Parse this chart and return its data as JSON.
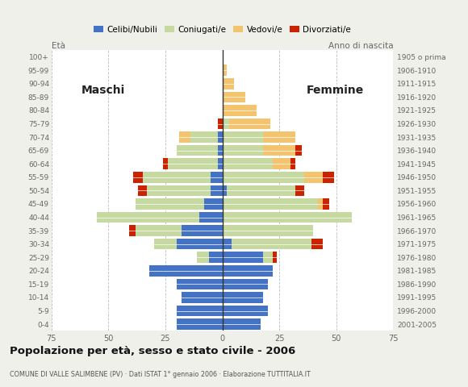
{
  "age_groups": [
    "0-4",
    "5-9",
    "10-14",
    "15-19",
    "20-24",
    "25-29",
    "30-34",
    "35-39",
    "40-44",
    "45-49",
    "50-54",
    "55-59",
    "60-64",
    "65-69",
    "70-74",
    "75-79",
    "80-84",
    "85-89",
    "90-94",
    "95-99",
    "100+"
  ],
  "birth_years": [
    "2001-2005",
    "1996-2000",
    "1991-1995",
    "1986-1990",
    "1981-1985",
    "1976-1980",
    "1971-1975",
    "1966-1970",
    "1961-1965",
    "1956-1960",
    "1951-1955",
    "1946-1950",
    "1941-1945",
    "1936-1940",
    "1931-1935",
    "1926-1930",
    "1921-1925",
    "1916-1920",
    "1911-1915",
    "1906-1910",
    "1905 o prima"
  ],
  "colors": {
    "celibe": "#4472c4",
    "coniugato": "#c6d9a0",
    "vedovo": "#f4c36e",
    "divorziato": "#cc2200"
  },
  "males": {
    "celibe": [
      20,
      20,
      18,
      20,
      32,
      6,
      20,
      18,
      10,
      8,
      5,
      5,
      2,
      2,
      2,
      0,
      0,
      0,
      0,
      0,
      0
    ],
    "coniugato": [
      0,
      0,
      0,
      0,
      0,
      5,
      10,
      20,
      45,
      30,
      28,
      30,
      22,
      18,
      12,
      0,
      0,
      0,
      0,
      0,
      0
    ],
    "vedovo": [
      0,
      0,
      0,
      0,
      0,
      0,
      0,
      0,
      0,
      0,
      0,
      0,
      0,
      0,
      5,
      0,
      0,
      0,
      0,
      0,
      0
    ],
    "divorziato": [
      0,
      0,
      0,
      0,
      0,
      0,
      0,
      3,
      0,
      0,
      4,
      4,
      2,
      0,
      0,
      2,
      0,
      0,
      0,
      0,
      0
    ]
  },
  "females": {
    "nubile": [
      17,
      20,
      18,
      20,
      22,
      18,
      4,
      0,
      0,
      0,
      2,
      0,
      0,
      0,
      0,
      0,
      0,
      0,
      0,
      0,
      0
    ],
    "coniugata": [
      0,
      0,
      0,
      0,
      0,
      4,
      35,
      40,
      57,
      42,
      30,
      36,
      22,
      18,
      18,
      3,
      0,
      0,
      0,
      0,
      0
    ],
    "vedova": [
      0,
      0,
      0,
      0,
      0,
      0,
      0,
      0,
      0,
      2,
      0,
      8,
      8,
      14,
      14,
      18,
      15,
      10,
      5,
      2,
      0
    ],
    "divorziata": [
      0,
      0,
      0,
      0,
      0,
      2,
      5,
      0,
      0,
      3,
      4,
      5,
      2,
      3,
      0,
      0,
      0,
      0,
      0,
      0,
      0
    ]
  },
  "xlim": 75,
  "title": "Popolazione per età, sesso e stato civile - 2006",
  "subtitle": "COMUNE DI VALLE SALIMBENE (PV) · Dati ISTAT 1° gennaio 2006 · Elaborazione TUTTITALIA.IT",
  "legend_labels": [
    "Celibi/Nubili",
    "Coniugati/e",
    "Vedovi/e",
    "Divorziati/e"
  ],
  "bg_color": "#f0f0eb",
  "plot_bg": "#ffffff",
  "grid_color": "#aaaaaa"
}
